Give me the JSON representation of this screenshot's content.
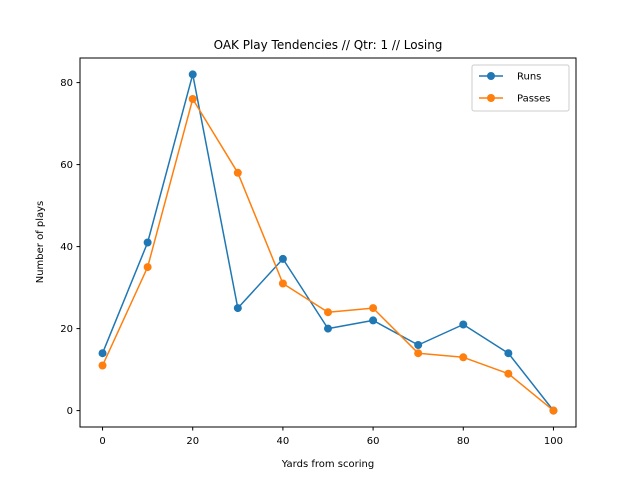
{
  "chart_data": {
    "type": "line",
    "title": "OAK Play Tendencies // Qtr: 1 // Losing",
    "xlabel": "Yards from scoring",
    "ylabel": "Number of plays",
    "x": [
      0,
      10,
      20,
      30,
      40,
      50,
      60,
      70,
      80,
      90,
      100
    ],
    "xlim": [
      -5,
      105
    ],
    "ylim": [
      -4,
      86
    ],
    "xticks": [
      0,
      20,
      40,
      60,
      80,
      100
    ],
    "yticks": [
      0,
      20,
      40,
      60,
      80
    ],
    "grid": false,
    "legend_position": "top-right",
    "series": [
      {
        "name": "Runs",
        "color": "#1f77b4",
        "marker": "circle",
        "values": [
          14,
          41,
          82,
          25,
          37,
          20,
          22,
          16,
          21,
          14,
          0
        ]
      },
      {
        "name": "Passes",
        "color": "#ff7f0e",
        "marker": "circle",
        "values": [
          11,
          35,
          76,
          58,
          31,
          24,
          25,
          14,
          13,
          9,
          0
        ]
      }
    ]
  }
}
